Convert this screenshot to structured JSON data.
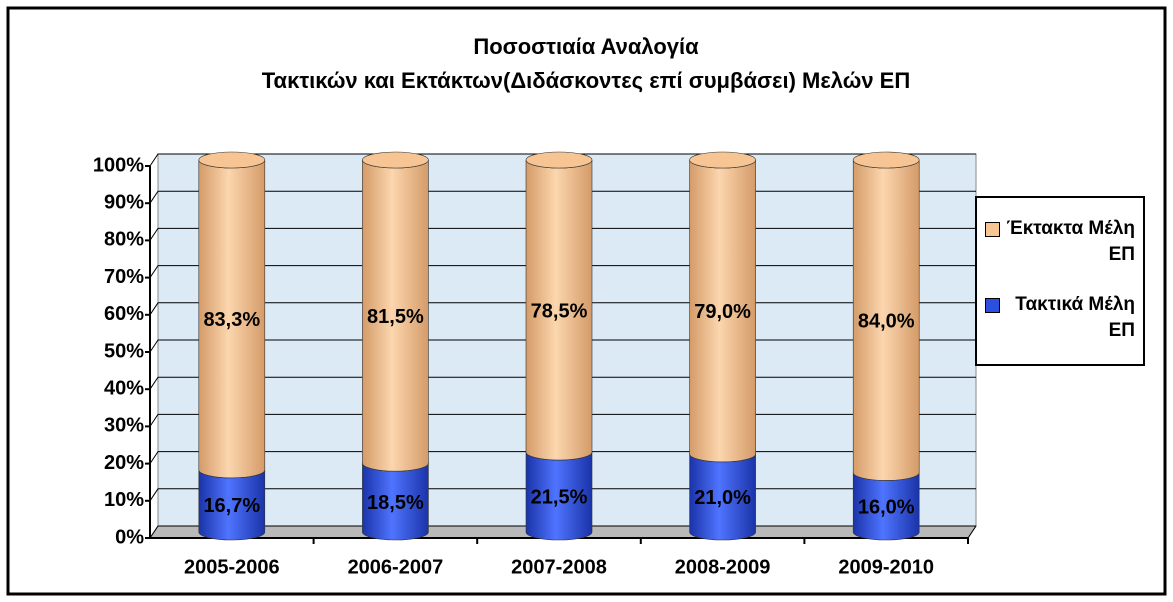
{
  "chart_data": {
    "type": "stacked_cylinder",
    "title": "Ποσοστιαία Αναλογία",
    "subtitle": "Τακτικών και Εκτάκτων(Διδάσκοντες επί συμβάσει) Μελών ΕΠ",
    "categories": [
      "2005-2006",
      "2006-2007",
      "2007-2008",
      "2008-2009",
      "2009-2010"
    ],
    "series": [
      {
        "name": "Τακτικά Μέλη ΕΠ",
        "color": "#2d4fe0",
        "values": [
          16.7,
          18.5,
          21.5,
          21.0,
          16.0
        ],
        "value_labels": [
          "16,7%",
          "18,5%",
          "21,5%",
          "21,0%",
          "16,0%"
        ]
      },
      {
        "name": "Έκτακτα Μέλη ΕΠ",
        "color": "#f7c594",
        "values": [
          83.3,
          81.5,
          78.5,
          79.0,
          84.0
        ],
        "value_labels": [
          "83,3%",
          "81,5%",
          "78,5%",
          "79,0%",
          "84,0%"
        ]
      }
    ],
    "ylim": [
      0,
      100
    ],
    "yticks": [
      {
        "value": 0,
        "label": "0%"
      },
      {
        "value": 10,
        "label": "10%"
      },
      {
        "value": 20,
        "label": "20%"
      },
      {
        "value": 30,
        "label": "30%"
      },
      {
        "value": 40,
        "label": "40%"
      },
      {
        "value": 50,
        "label": "50%"
      },
      {
        "value": 60,
        "label": "60%"
      },
      {
        "value": 70,
        "label": "70%"
      },
      {
        "value": 80,
        "label": "80%"
      },
      {
        "value": 90,
        "label": "90%"
      },
      {
        "value": 100,
        "label": "100%"
      }
    ],
    "grid": true,
    "legend": "right"
  }
}
